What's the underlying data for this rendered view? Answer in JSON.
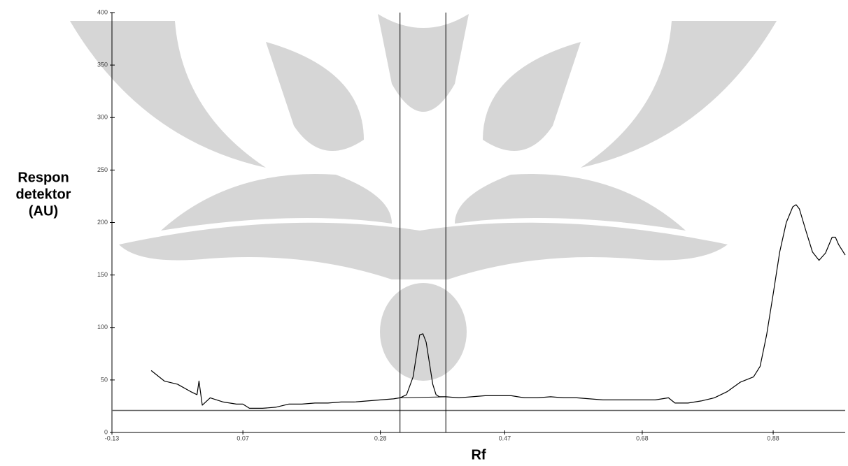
{
  "chart_data": {
    "type": "line",
    "ylabel": [
      "Respon",
      "detektor",
      "(AU)"
    ],
    "xlabel": "Rf",
    "xlim": [
      -0.13,
      0.99
    ],
    "ylim": [
      0,
      400
    ],
    "xticks": [
      -0.13,
      0.07,
      0.28,
      0.47,
      0.68,
      0.88
    ],
    "yticks": [
      0,
      50,
      100,
      150,
      200,
      250,
      300,
      350,
      400
    ],
    "color": "#000000",
    "x": [
      -0.07,
      -0.05,
      -0.03,
      -0.01,
      0.0,
      0.003,
      0.008,
      0.02,
      0.04,
      0.06,
      0.07,
      0.08,
      0.1,
      0.12,
      0.14,
      0.16,
      0.18,
      0.2,
      0.22,
      0.24,
      0.26,
      0.28,
      0.3,
      0.31,
      0.32,
      0.33,
      0.335,
      0.34,
      0.345,
      0.35,
      0.355,
      0.36,
      0.365,
      0.37,
      0.38,
      0.4,
      0.42,
      0.44,
      0.46,
      0.48,
      0.5,
      0.52,
      0.54,
      0.56,
      0.58,
      0.6,
      0.62,
      0.64,
      0.66,
      0.68,
      0.7,
      0.72,
      0.73,
      0.75,
      0.77,
      0.79,
      0.81,
      0.83,
      0.85,
      0.86,
      0.87,
      0.88,
      0.89,
      0.9,
      0.91,
      0.915,
      0.92,
      0.93,
      0.94,
      0.95,
      0.96,
      0.97,
      0.975,
      0.98,
      0.99
    ],
    "values": [
      59,
      49,
      46,
      39,
      36,
      49,
      26,
      33,
      29,
      27,
      27,
      23,
      23,
      24,
      27,
      27,
      28,
      28,
      29,
      29,
      30,
      31,
      32,
      33,
      36,
      53,
      73,
      93,
      94,
      86,
      66,
      46,
      36,
      34,
      34,
      33,
      34,
      35,
      35,
      35,
      33,
      33,
      34,
      33,
      33,
      32,
      31,
      31,
      31,
      31,
      31,
      33,
      28,
      28,
      30,
      33,
      39,
      48,
      53,
      63,
      93,
      132,
      172,
      200,
      215,
      217,
      213,
      192,
      172,
      164,
      171,
      186,
      186,
      179,
      169
    ],
    "vlines": [
      0.31,
      0.38
    ],
    "hline": 21,
    "peak_baseline": {
      "x": [
        0.31,
        0.38
      ],
      "values": [
        33,
        34
      ]
    }
  }
}
